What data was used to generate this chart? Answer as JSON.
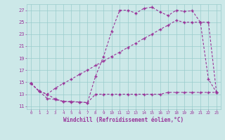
{
  "bg_color": "#cce8e8",
  "line_color": "#993399",
  "grid_color": "#99cccc",
  "xlabel": "Windchill (Refroidissement éolien,°C)",
  "xlim": [
    -0.5,
    23.5
  ],
  "ylim": [
    10.5,
    28.0
  ],
  "xticks": [
    0,
    1,
    2,
    3,
    4,
    5,
    6,
    7,
    8,
    9,
    10,
    11,
    12,
    13,
    14,
    15,
    16,
    17,
    18,
    19,
    20,
    21,
    22,
    23
  ],
  "yticks": [
    11,
    13,
    15,
    17,
    19,
    21,
    23,
    25,
    27
  ],
  "s1_x": [
    0,
    1,
    2,
    3,
    4,
    5,
    6,
    7,
    8,
    9,
    10,
    11,
    12,
    13,
    14,
    15,
    16,
    17,
    18,
    19,
    20,
    21,
    22,
    23
  ],
  "s1_y": [
    14.8,
    13.5,
    13.0,
    12.2,
    11.8,
    11.8,
    11.7,
    11.6,
    16.0,
    19.3,
    23.5,
    27.0,
    27.0,
    26.5,
    27.3,
    27.5,
    26.7,
    26.1,
    27.0,
    26.8,
    26.9,
    25.0,
    15.5,
    13.3
  ],
  "s2_x": [
    0,
    1,
    2,
    3,
    4,
    5,
    6,
    7,
    8,
    9,
    10,
    11,
    12,
    13,
    14,
    15,
    16,
    17,
    18,
    19,
    20,
    21,
    22,
    23
  ],
  "s2_y": [
    14.8,
    13.5,
    12.3,
    12.1,
    11.8,
    11.7,
    11.7,
    11.6,
    13.0,
    13.0,
    13.0,
    13.0,
    13.0,
    13.0,
    13.0,
    13.0,
    13.0,
    13.3,
    13.3,
    13.3,
    13.3,
    13.3,
    13.3,
    13.3
  ],
  "s3_x": [
    0,
    1,
    2,
    3,
    4,
    5,
    6,
    7,
    8,
    9,
    10,
    11,
    12,
    13,
    14,
    15,
    16,
    17,
    18,
    19,
    20,
    21,
    22,
    23
  ],
  "s3_y": [
    14.8,
    13.5,
    13.0,
    14.0,
    14.8,
    15.5,
    16.3,
    17.0,
    17.8,
    18.5,
    19.3,
    20.0,
    20.8,
    21.5,
    22.3,
    23.0,
    23.8,
    24.5,
    25.3,
    25.0,
    25.0,
    25.0,
    25.0,
    13.3
  ]
}
